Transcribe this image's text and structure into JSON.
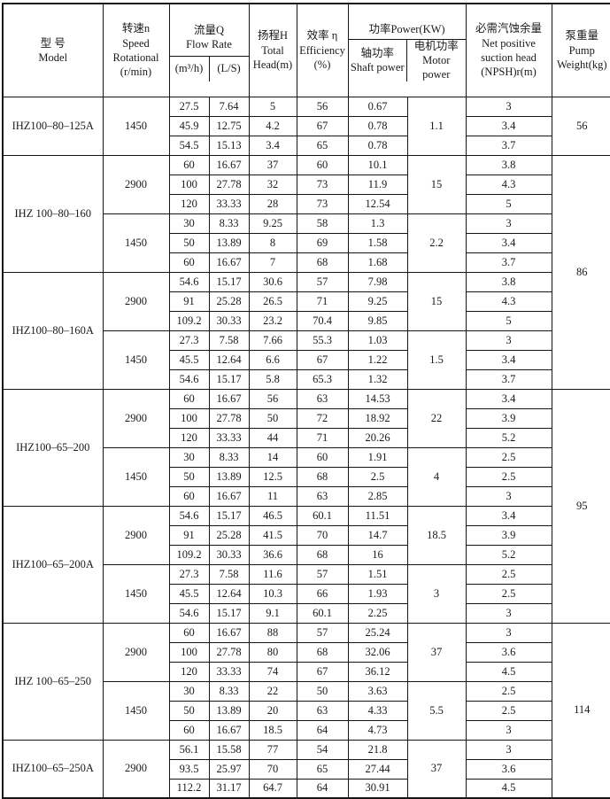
{
  "header": {
    "model": "型  号\nModel",
    "speed": "转速n\nSpeed\nRotational\n(r/min)",
    "flow_title": "流量Q\nFlow Rate",
    "flow_sub_m3h": "(m³/h)",
    "flow_sub_ls": "(L/S)",
    "head": "扬程H\nTotal\nHead(m)",
    "efficiency": "效率 η\nEfficiency\n(%)",
    "power_title": "功率Power(KW)",
    "power_sub_shaft": "轴功率\nShaft power",
    "power_sub_motor": "电机功率\nMotor power",
    "npsh": "必需汽蚀余量\nNet positive\nsuction head\n(NPSH)r(m)",
    "weight": "泵重量\nPump\nWeight(kg)"
  },
  "row_columns": [
    "flow_m3h",
    "flow_ls",
    "head",
    "efficiency",
    "shaft_power",
    "npsh"
  ],
  "sections": [
    {
      "model": "IHZ100–80–125A",
      "blocks": [
        {
          "speed": "1450",
          "motor_power": "1.1",
          "rows": [
            [
              "27.5",
              "7.64",
              "5",
              "56",
              "0.67",
              "3"
            ],
            [
              "45.9",
              "12.75",
              "4.2",
              "67",
              "0.78",
              "3.4"
            ],
            [
              "54.5",
              "15.13",
              "3.4",
              "65",
              "0.78",
              "3.7"
            ]
          ]
        }
      ]
    },
    {
      "model": "IHZ 100–80–160",
      "blocks": [
        {
          "speed": "2900",
          "motor_power": "15",
          "rows": [
            [
              "60",
              "16.67",
              "37",
              "60",
              "10.1",
              "3.8"
            ],
            [
              "100",
              "27.78",
              "32",
              "73",
              "11.9",
              "4.3"
            ],
            [
              "120",
              "33.33",
              "28",
              "73",
              "12.54",
              "5"
            ]
          ]
        },
        {
          "speed": "1450",
          "motor_power": "2.2",
          "rows": [
            [
              "30",
              "8.33",
              "9.25",
              "58",
              "1.3",
              "3"
            ],
            [
              "50",
              "13.89",
              "8",
              "69",
              "1.58",
              "3.4"
            ],
            [
              "60",
              "16.67",
              "7",
              "68",
              "1.68",
              "3.7"
            ]
          ]
        }
      ]
    },
    {
      "model": "IHZ100–80–160A",
      "blocks": [
        {
          "speed": "2900",
          "motor_power": "15",
          "rows": [
            [
              "54.6",
              "15.17",
              "30.6",
              "57",
              "7.98",
              "3.8"
            ],
            [
              "91",
              "25.28",
              "26.5",
              "71",
              "9.25",
              "4.3"
            ],
            [
              "109.2",
              "30.33",
              "23.2",
              "70.4",
              "9.85",
              "5"
            ]
          ]
        },
        {
          "speed": "1450",
          "motor_power": "1.5",
          "rows": [
            [
              "27.3",
              "7.58",
              "7.66",
              "55.3",
              "1.03",
              "3"
            ],
            [
              "45.5",
              "12.64",
              "6.6",
              "67",
              "1.22",
              "3.4"
            ],
            [
              "54.6",
              "15.17",
              "5.8",
              "65.3",
              "1.32",
              "3.7"
            ]
          ]
        }
      ]
    },
    {
      "model": "IHZ100–65–200",
      "blocks": [
        {
          "speed": "2900",
          "motor_power": "22",
          "rows": [
            [
              "60",
              "16.67",
              "56",
              "63",
              "14.53",
              "3.4"
            ],
            [
              "100",
              "27.78",
              "50",
              "72",
              "18.92",
              "3.9"
            ],
            [
              "120",
              "33.33",
              "44",
              "71",
              "20.26",
              "5.2"
            ]
          ]
        },
        {
          "speed": "1450",
          "motor_power": "4",
          "rows": [
            [
              "30",
              "8.33",
              "14",
              "60",
              "1.91",
              "2.5"
            ],
            [
              "50",
              "13.89",
              "12.5",
              "68",
              "2.5",
              "2.5"
            ],
            [
              "60",
              "16.67",
              "11",
              "63",
              "2.85",
              "3"
            ]
          ]
        }
      ]
    },
    {
      "model": "IHZ100–65–200A",
      "blocks": [
        {
          "speed": "2900",
          "motor_power": "18.5",
          "rows": [
            [
              "54.6",
              "15.17",
              "46.5",
              "60.1",
              "11.51",
              "3.4"
            ],
            [
              "91",
              "25.28",
              "41.5",
              "70",
              "14.7",
              "3.9"
            ],
            [
              "109.2",
              "30.33",
              "36.6",
              "68",
              "16",
              "5.2"
            ]
          ]
        },
        {
          "speed": "1450",
          "motor_power": "3",
          "rows": [
            [
              "27.3",
              "7.58",
              "11.6",
              "57",
              "1.51",
              "2.5"
            ],
            [
              "45.5",
              "12.64",
              "10.3",
              "66",
              "1.93",
              "2.5"
            ],
            [
              "54.6",
              "15.17",
              "9.1",
              "60.1",
              "2.25",
              "3"
            ]
          ]
        }
      ]
    },
    {
      "model": "IHZ 100–65–250",
      "blocks": [
        {
          "speed": "2900",
          "motor_power": "37",
          "rows": [
            [
              "60",
              "16.67",
              "88",
              "57",
              "25.24",
              "3"
            ],
            [
              "100",
              "27.78",
              "80",
              "68",
              "32.06",
              "3.6"
            ],
            [
              "120",
              "33.33",
              "74",
              "67",
              "36.12",
              "4.5"
            ]
          ]
        },
        {
          "speed": "1450",
          "motor_power": "5.5",
          "rows": [
            [
              "30",
              "8.33",
              "22",
              "50",
              "3.63",
              "2.5"
            ],
            [
              "50",
              "13.89",
              "20",
              "63",
              "4.33",
              "2.5"
            ],
            [
              "60",
              "16.67",
              "18.5",
              "64",
              "4.73",
              "3"
            ]
          ]
        }
      ]
    },
    {
      "model": "IHZ100–65–250A",
      "blocks": [
        {
          "speed": "2900",
          "motor_power": "37",
          "rows": [
            [
              "56.1",
              "15.58",
              "77",
              "54",
              "21.8",
              "3"
            ],
            [
              "93.5",
              "25.97",
              "70",
              "65",
              "27.44",
              "3.6"
            ],
            [
              "112.2",
              "31.17",
              "64.7",
              "64",
              "30.91",
              "4.5"
            ]
          ]
        }
      ]
    }
  ],
  "weight_groups": [
    {
      "value": "56",
      "rows": 3
    },
    {
      "value": "86",
      "rows": 12
    },
    {
      "value": "95",
      "rows": 12
    },
    {
      "value": "114",
      "rows": 9
    }
  ],
  "colors": {
    "background": "#ffffff",
    "border": "#151515",
    "text": "#1a1a1a"
  }
}
